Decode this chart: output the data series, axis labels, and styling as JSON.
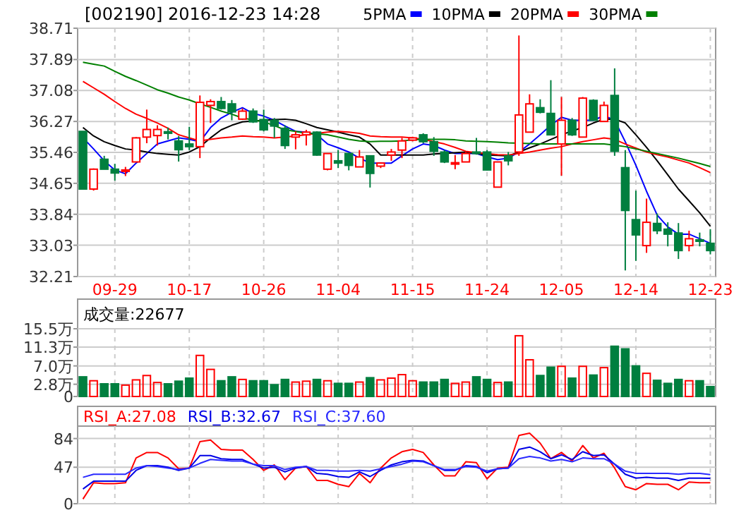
{
  "chart_data": [
    {
      "type": "candlestick",
      "title": "[002190] 2016-12-23 14:28",
      "legend": "top",
      "grid": true,
      "categories": [
        null,
        null,
        null,
        "09-29",
        null,
        null,
        null,
        null,
        null,
        null,
        "10-17",
        null,
        null,
        null,
        null,
        null,
        null,
        "10-26",
        null,
        null,
        null,
        null,
        null,
        null,
        "11-04",
        null,
        null,
        null,
        null,
        null,
        null,
        "11-15",
        null,
        null,
        null,
        null,
        null,
        null,
        "11-24",
        null,
        null,
        null,
        null,
        null,
        null,
        "12-05",
        null,
        null,
        null,
        null,
        null,
        null,
        "12-14",
        null,
        null,
        null,
        null,
        null,
        null,
        "12-23"
      ],
      "ylim": [
        32.21,
        38.71
      ],
      "yticks": [
        32.21,
        33.03,
        33.84,
        34.65,
        35.46,
        36.27,
        37.08,
        37.89,
        38.71
      ],
      "ohlc": [
        [
          36.01,
          36.01,
          34.5,
          34.5
        ],
        [
          34.5,
          35.04,
          34.46,
          35.02
        ],
        [
          35.28,
          35.37,
          35.02,
          35.02
        ],
        [
          35.02,
          35.16,
          34.72,
          34.92
        ],
        [
          34.97,
          35.08,
          34.84,
          35.0
        ],
        [
          35.21,
          35.86,
          35.21,
          35.84
        ],
        [
          35.86,
          36.58,
          35.7,
          36.06
        ],
        [
          35.9,
          36.17,
          35.64,
          36.06
        ],
        [
          36.0,
          36.11,
          35.8,
          35.96
        ],
        [
          35.76,
          35.89,
          35.22,
          35.53
        ],
        [
          35.68,
          36.13,
          35.52,
          35.61
        ],
        [
          35.61,
          36.95,
          35.31,
          36.77
        ],
        [
          36.69,
          36.85,
          36.23,
          36.79
        ],
        [
          36.79,
          36.91,
          36.58,
          36.61
        ],
        [
          36.73,
          36.83,
          36.3,
          36.52
        ],
        [
          36.33,
          36.61,
          36.31,
          36.54
        ],
        [
          36.54,
          36.61,
          36.23,
          36.26
        ],
        [
          36.32,
          36.58,
          36.01,
          36.05
        ],
        [
          36.3,
          36.36,
          35.84,
          36.15
        ],
        [
          36.09,
          36.17,
          35.55,
          35.64
        ],
        [
          35.86,
          36.01,
          35.54,
          35.92
        ],
        [
          35.92,
          36.05,
          35.64,
          35.99
        ],
        [
          35.99,
          36.01,
          35.37,
          35.39
        ],
        [
          35.02,
          35.43,
          34.99,
          35.43
        ],
        [
          35.24,
          35.52,
          35.05,
          35.18
        ],
        [
          35.43,
          35.45,
          34.99,
          35.12
        ],
        [
          35.08,
          35.52,
          35.08,
          35.34
        ],
        [
          35.37,
          35.37,
          34.54,
          34.91
        ],
        [
          35.1,
          35.2,
          35.05,
          35.18
        ],
        [
          35.39,
          35.55,
          35.24,
          35.47
        ],
        [
          35.52,
          35.84,
          35.31,
          35.76
        ],
        [
          35.78,
          35.87,
          35.75,
          35.84
        ],
        [
          35.92,
          35.96,
          35.7,
          35.74
        ],
        [
          35.74,
          35.86,
          35.37,
          35.49
        ],
        [
          35.47,
          35.52,
          35.18,
          35.21
        ],
        [
          35.17,
          35.39,
          35.02,
          35.19
        ],
        [
          35.21,
          35.47,
          35.21,
          35.43
        ],
        [
          35.47,
          35.84,
          35.4,
          35.43
        ],
        [
          35.47,
          35.52,
          34.99,
          35.0
        ],
        [
          34.55,
          35.21,
          34.55,
          35.21
        ],
        [
          35.37,
          35.47,
          35.12,
          35.24
        ],
        [
          35.47,
          38.52,
          35.37,
          36.44
        ],
        [
          35.99,
          36.98,
          35.99,
          36.73
        ],
        [
          36.63,
          36.85,
          36.48,
          36.51
        ],
        [
          36.48,
          37.35,
          35.92,
          35.92
        ],
        [
          35.68,
          36.91,
          34.85,
          36.3
        ],
        [
          36.3,
          36.36,
          35.89,
          35.92
        ],
        [
          35.86,
          36.91,
          35.86,
          36.88
        ],
        [
          36.82,
          36.85,
          36.3,
          36.3
        ],
        [
          36.27,
          36.79,
          36.27,
          36.69
        ],
        [
          36.95,
          37.66,
          35.37,
          35.49
        ],
        [
          35.06,
          35.52,
          32.37,
          33.94
        ],
        [
          33.7,
          34.46,
          32.62,
          33.3
        ],
        [
          33.02,
          34.25,
          32.83,
          33.63
        ],
        [
          33.6,
          33.86,
          33.32,
          33.41
        ],
        [
          33.45,
          33.63,
          33.0,
          33.32
        ],
        [
          33.35,
          33.61,
          32.67,
          32.89
        ],
        [
          33.02,
          33.41,
          32.87,
          33.2
        ],
        [
          33.17,
          33.36,
          33.0,
          33.14
        ],
        [
          33.08,
          33.45,
          32.79,
          32.89
        ]
      ],
      "colors": [
        "#007f3f",
        "#ff0000",
        "#007f3f",
        "#007f3f",
        "#ff0000",
        "#ff0000",
        "#ff0000",
        "#ff0000",
        "#007f3f",
        "#007f3f",
        "#007f3f",
        "#ff0000",
        "#ff0000",
        "#007f3f",
        "#007f3f",
        "#ff0000",
        "#007f3f",
        "#007f3f",
        "#007f3f",
        "#007f3f",
        "#ff0000",
        "#ff0000",
        "#007f3f",
        "#ff0000",
        "#007f3f",
        "#007f3f",
        "#ff0000",
        "#007f3f",
        "#ff0000",
        "#ff0000",
        "#ff0000",
        "#ff0000",
        "#007f3f",
        "#007f3f",
        "#007f3f",
        "#ff0000",
        "#ff0000",
        "#007f3f",
        "#007f3f",
        "#ff0000",
        "#007f3f",
        "#ff0000",
        "#ff0000",
        "#007f3f",
        "#007f3f",
        "#ff0000",
        "#007f3f",
        "#ff0000",
        "#007f3f",
        "#ff0000",
        "#007f3f",
        "#007f3f",
        "#007f3f",
        "#ff0000",
        "#007f3f",
        "#007f3f",
        "#007f3f",
        "#ff0000",
        "#007f3f",
        "#007f3f"
      ],
      "series": [
        {
          "type": "line",
          "name": "5PMA",
          "color": "#0000ff",
          "values": [
            35.84,
            35.55,
            35.24,
            35.0,
            34.9,
            35.18,
            35.43,
            35.68,
            35.76,
            35.84,
            35.8,
            35.74,
            36.11,
            36.36,
            36.51,
            36.63,
            36.48,
            36.41,
            36.3,
            36.15,
            36.01,
            35.99,
            35.92,
            35.68,
            35.58,
            35.47,
            35.31,
            35.18,
            35.18,
            35.18,
            35.37,
            35.55,
            35.68,
            35.64,
            35.52,
            35.43,
            35.43,
            35.43,
            35.34,
            35.27,
            35.31,
            35.47,
            35.68,
            35.92,
            36.17,
            36.38,
            36.3,
            36.3,
            36.3,
            36.42,
            36.3,
            35.74,
            35.12,
            34.44,
            33.82,
            33.51,
            33.32,
            33.32,
            33.2,
            33.08
          ]
        },
        {
          "type": "line",
          "name": "10PMA",
          "color": "#000000",
          "values": [
            36.11,
            35.89,
            35.74,
            35.64,
            35.55,
            35.52,
            35.47,
            35.43,
            35.41,
            35.39,
            35.47,
            35.61,
            35.84,
            36.05,
            36.17,
            36.26,
            36.28,
            36.3,
            36.32,
            36.33,
            36.3,
            36.21,
            36.11,
            36.05,
            35.99,
            35.92,
            35.86,
            35.68,
            35.39,
            35.39,
            35.39,
            35.39,
            35.39,
            35.42,
            35.43,
            35.45,
            35.47,
            35.43,
            35.39,
            35.38,
            35.37,
            35.47,
            35.58,
            35.68,
            35.8,
            35.92,
            36.02,
            36.11,
            36.23,
            36.33,
            36.33,
            36.23,
            35.92,
            35.59,
            35.24,
            34.87,
            34.5,
            34.19,
            33.88,
            33.53
          ]
        },
        {
          "type": "line",
          "name": "20PMA",
          "color": "#ff0000",
          "values": [
            37.32,
            37.15,
            36.98,
            36.79,
            36.61,
            36.46,
            36.35,
            36.23,
            36.09,
            35.92,
            35.84,
            35.76,
            35.8,
            35.84,
            35.86,
            35.89,
            35.87,
            35.86,
            35.84,
            35.86,
            35.89,
            35.92,
            35.96,
            35.99,
            36.01,
            35.99,
            35.96,
            35.89,
            35.87,
            35.86,
            35.86,
            35.84,
            35.8,
            35.74,
            35.68,
            35.59,
            35.49,
            35.45,
            35.43,
            35.4,
            35.39,
            35.43,
            35.47,
            35.52,
            35.57,
            35.61,
            35.68,
            35.74,
            35.79,
            35.84,
            35.8,
            35.68,
            35.57,
            35.47,
            35.4,
            35.34,
            35.26,
            35.18,
            35.06,
            34.93
          ]
        },
        {
          "type": "line",
          "name": "30PMA",
          "color": "#008000",
          "values": [
            37.82,
            37.77,
            37.72,
            37.58,
            37.45,
            37.34,
            37.22,
            37.1,
            37.01,
            36.91,
            36.83,
            36.73,
            36.64,
            36.54,
            36.46,
            36.36,
            36.31,
            36.26,
            36.16,
            36.05,
            36.01,
            35.96,
            35.95,
            35.92,
            35.86,
            35.8,
            35.76,
            35.74,
            35.75,
            35.75,
            35.76,
            35.79,
            35.8,
            35.8,
            35.8,
            35.79,
            35.76,
            35.75,
            35.74,
            35.73,
            35.71,
            35.7,
            35.69,
            35.68,
            35.68,
            35.68,
            35.68,
            35.68,
            35.68,
            35.68,
            35.65,
            35.61,
            35.55,
            35.49,
            35.43,
            35.37,
            35.31,
            35.24,
            35.17,
            35.09
          ]
        }
      ]
    },
    {
      "type": "bar",
      "title": "成交量:22677",
      "grid": true,
      "tick_labels": "y",
      "categories": [
        null,
        null,
        null,
        null,
        null,
        null,
        null,
        null,
        null,
        null,
        null,
        null,
        null,
        null,
        null,
        null,
        null,
        null,
        null,
        null,
        null,
        null,
        null,
        null,
        null,
        null,
        null,
        null,
        null,
        null,
        null,
        null,
        null,
        null,
        null,
        null,
        null,
        null,
        null,
        null,
        null,
        null,
        null,
        null,
        null,
        null,
        null,
        null,
        null,
        null,
        null,
        null,
        null,
        null,
        null,
        null,
        null,
        null,
        null,
        null
      ],
      "ylim": [
        0,
        15.5
      ],
      "yticks": [
        0,
        {
          "value": 2.8,
          "label": "2.8万"
        },
        {
          "value": 7.0,
          "label": "7.0万"
        },
        {
          "value": 11.3,
          "label": "11.3万"
        },
        {
          "value": 15.5,
          "label": "15.5万"
        }
      ],
      "values": [
        4.5,
        3.6,
        2.9,
        2.9,
        2.6,
        3.8,
        4.8,
        3.2,
        2.9,
        3.5,
        4.2,
        9.4,
        6.2,
        3.6,
        4.5,
        3.9,
        3.6,
        3.6,
        2.7,
        3.9,
        3.3,
        3.5,
        3.9,
        3.6,
        3.0,
        3.0,
        3.3,
        4.3,
        3.8,
        4.2,
        5.0,
        3.6,
        3.3,
        3.3,
        3.9,
        3.0,
        3.3,
        4.5,
        3.9,
        3.2,
        3.3,
        13.9,
        8.4,
        4.8,
        6.7,
        6.9,
        4.2,
        6.9,
        4.9,
        6.6,
        11.5,
        10.9,
        7.0,
        5.3,
        3.7,
        3.0,
        3.9,
        3.6,
        3.6,
        2.27
      ],
      "colors": [
        "#007f3f",
        "#ff0000",
        "#007f3f",
        "#007f3f",
        "#ff0000",
        "#ff0000",
        "#ff0000",
        "#ff0000",
        "#007f3f",
        "#007f3f",
        "#007f3f",
        "#ff0000",
        "#ff0000",
        "#007f3f",
        "#007f3f",
        "#ff0000",
        "#007f3f",
        "#007f3f",
        "#007f3f",
        "#007f3f",
        "#ff0000",
        "#ff0000",
        "#007f3f",
        "#ff0000",
        "#007f3f",
        "#007f3f",
        "#ff0000",
        "#007f3f",
        "#ff0000",
        "#ff0000",
        "#ff0000",
        "#ff0000",
        "#007f3f",
        "#007f3f",
        "#007f3f",
        "#ff0000",
        "#ff0000",
        "#007f3f",
        "#007f3f",
        "#ff0000",
        "#007f3f",
        "#ff0000",
        "#ff0000",
        "#007f3f",
        "#007f3f",
        "#ff0000",
        "#007f3f",
        "#ff0000",
        "#007f3f",
        "#ff0000",
        "#007f3f",
        "#007f3f",
        "#007f3f",
        "#ff0000",
        "#007f3f",
        "#007f3f",
        "#007f3f",
        "#ff0000",
        "#007f3f",
        "#007f3f"
      ]
    },
    {
      "type": "line",
      "legend": "top left",
      "grid": true,
      "tick_labels": "y",
      "categories": [
        null,
        null,
        null,
        null,
        null,
        null,
        null,
        null,
        null,
        null,
        null,
        null,
        null,
        null,
        null,
        null,
        null,
        null,
        null,
        null,
        null,
        null,
        null,
        null,
        null,
        null,
        null,
        null,
        null,
        null,
        null,
        null,
        null,
        null,
        null,
        null,
        null,
        null,
        null,
        null,
        null,
        null,
        null,
        null,
        null,
        null,
        null,
        null,
        null,
        null,
        null,
        null,
        null,
        null,
        null,
        null,
        null,
        null,
        null,
        null
      ],
      "ylim": [
        0,
        100
      ],
      "yticks": [
        0,
        47,
        84
      ],
      "series": [
        {
          "name": "RSI_A:27.08",
          "color": "#ff0000",
          "values": [
            6,
            27,
            26,
            26,
            27,
            59,
            66,
            66,
            59,
            45,
            46,
            80,
            82,
            70,
            69,
            69,
            57,
            43,
            50,
            31,
            46,
            48,
            30,
            30,
            25,
            22,
            39,
            27,
            46,
            59,
            67,
            70,
            66,
            50,
            36,
            36,
            54,
            53,
            32,
            46,
            47,
            88,
            91,
            78,
            58,
            66,
            55,
            75,
            59,
            65,
            46,
            22,
            18,
            26,
            25,
            25,
            18,
            28,
            27,
            27.08
          ]
        },
        {
          "name": "RSI_B:32.67",
          "color": "#0000e6",
          "values": [
            19,
            29,
            29,
            29,
            29,
            43,
            49,
            49,
            47,
            43,
            46,
            62,
            62,
            58,
            57,
            57,
            51,
            46,
            47,
            41,
            46,
            48,
            39,
            38,
            35,
            34,
            41,
            35,
            43,
            50,
            54,
            56,
            55,
            49,
            43,
            43,
            49,
            48,
            40,
            45,
            46,
            70,
            73,
            67,
            58,
            63,
            57,
            67,
            62,
            63,
            51,
            38,
            33,
            34,
            33,
            33,
            30,
            33,
            33,
            32.67
          ]
        },
        {
          "name": "RSI_C:37.60",
          "color": "#2a2aff",
          "values": [
            34,
            38,
            38,
            38,
            38,
            46,
            49,
            48,
            46,
            44,
            46,
            52,
            57,
            56,
            55,
            55,
            51,
            49,
            49,
            44,
            47,
            48,
            43,
            43,
            42,
            42,
            43,
            42,
            45,
            48,
            51,
            55,
            54,
            49,
            44,
            44,
            48,
            47,
            42,
            45,
            46,
            58,
            61,
            59,
            55,
            57,
            54,
            59,
            58,
            58,
            51,
            42,
            39,
            39,
            39,
            39,
            38,
            39,
            39,
            37.6
          ]
        }
      ]
    }
  ]
}
